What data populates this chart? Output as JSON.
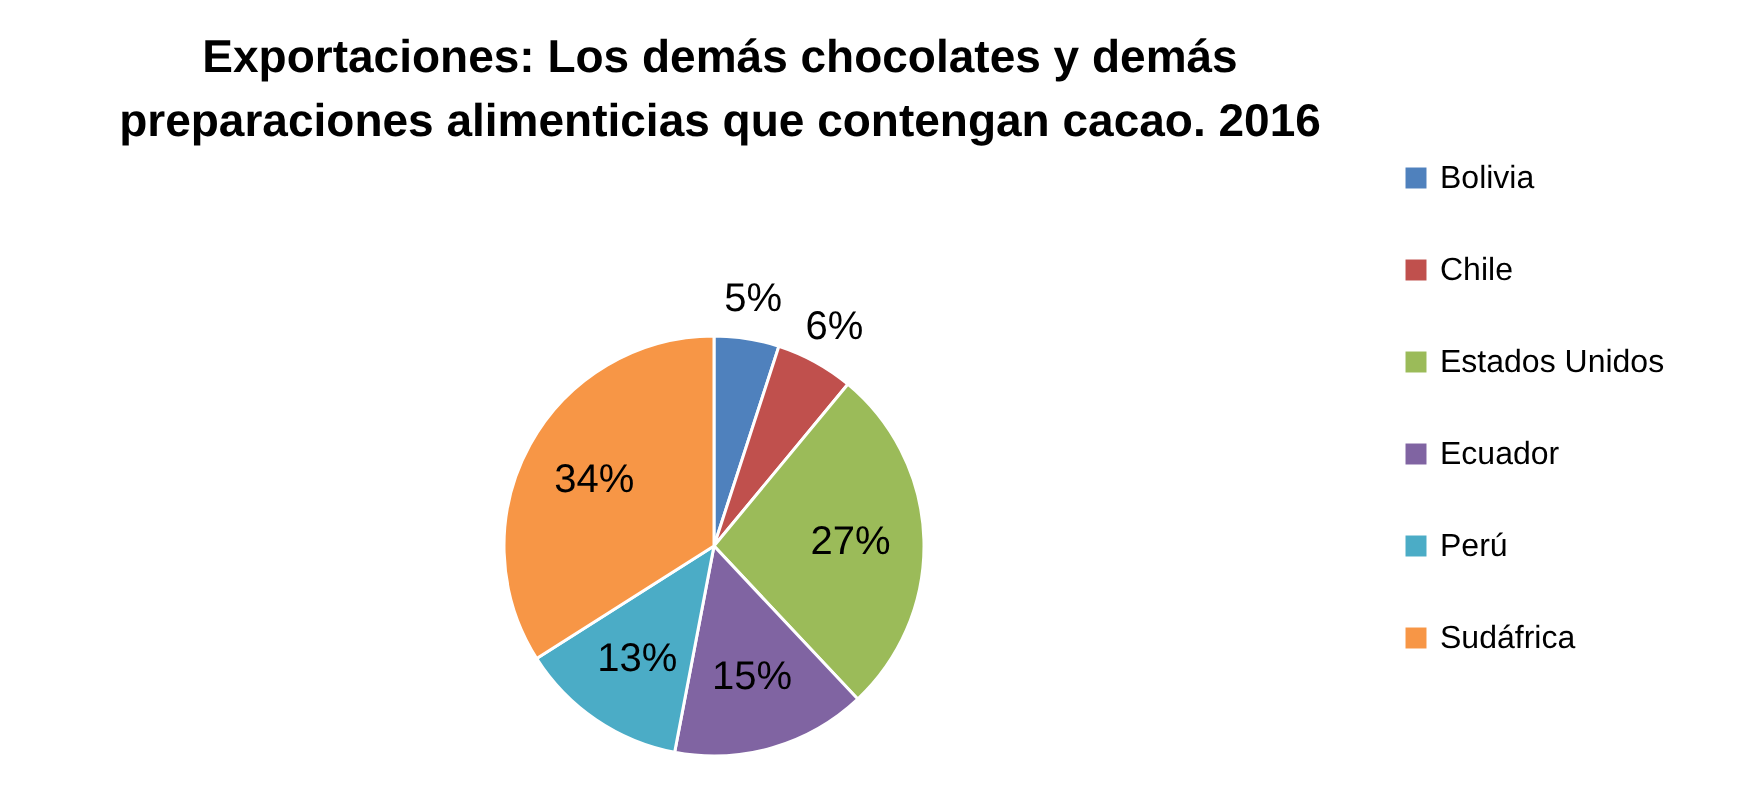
{
  "chart_data": {
    "type": "pie",
    "title": "Exportaciones: Los demás chocolates y demás\npreparaciones alimenticias que contengan cacao. 2016",
    "categories": [
      "Bolivia",
      "Chile",
      "Estados Unidos",
      "Ecuador",
      "Perú",
      "Sudáfrica"
    ],
    "values": [
      5,
      6,
      27,
      15,
      13,
      34
    ],
    "colors": [
      "#4f81bd",
      "#c0504d",
      "#9bbb59",
      "#8064a2",
      "#4bacc6",
      "#f79646"
    ],
    "value_labels": [
      "5%",
      "6%",
      "27%",
      "15%",
      "13%",
      "34%"
    ],
    "legend": "right"
  }
}
